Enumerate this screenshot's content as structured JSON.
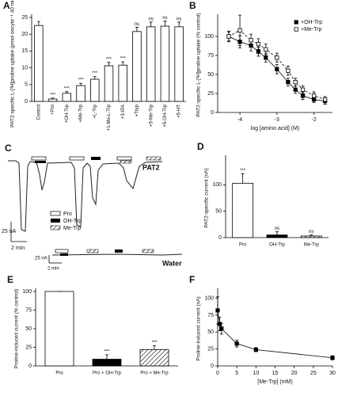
{
  "chart_data": [
    {
      "panel": "A",
      "type": "bar",
      "ylabel": "PAT2-specific L-[³H]proline uptake (pmol oocyte⁻¹ 40 min⁻¹)",
      "categories": [
        "Control",
        "+Pro",
        "+OH-Trp",
        "+Me-Trp",
        "+L-Trp",
        "+1-Me-L-Trp",
        "+3-IPA",
        "+Tryp",
        "+5-Me-Trp",
        "+5-OH-Trp",
        "+5-HT"
      ],
      "values": [
        22.6,
        0.7,
        2.4,
        4.7,
        6.6,
        10.6,
        10.8,
        20.8,
        22.2,
        22.4,
        22.2
      ],
      "errors": [
        1.2,
        0.3,
        0.5,
        0.7,
        0.8,
        1.0,
        1.0,
        1.3,
        1.4,
        1.5,
        1.4
      ],
      "annotations": [
        null,
        "***",
        "***",
        "***",
        "***",
        "***",
        "***",
        "ns",
        "ns",
        "ns",
        "ns"
      ],
      "fills": [
        "white",
        "white",
        "white",
        "white",
        "white",
        "white",
        "white",
        "white",
        "white",
        "white",
        "white"
      ],
      "ylim": [
        0,
        25
      ],
      "yticks": [
        0,
        5,
        10,
        15,
        20,
        25
      ]
    },
    {
      "panel": "B",
      "type": "scatter",
      "xlabel": "log [amino acid] (M)",
      "ylabel": "PAT2-specific L-[³H]proline uptake (% control)",
      "x": [
        -4.3,
        -4,
        -3.7,
        -3.5,
        -3.3,
        -3,
        -2.7,
        -2.5,
        -2.3,
        -2,
        -1.7
      ],
      "series": [
        {
          "name": "+OH-Trp",
          "marker": "filled",
          "values": [
            100,
            93,
            88,
            80,
            72,
            57,
            40,
            30,
            22,
            17,
            15
          ],
          "errors": [
            6,
            8,
            7,
            6,
            6,
            6,
            5,
            5,
            5,
            4,
            4
          ]
        },
        {
          "name": "+Me-Trp",
          "marker": "open",
          "values": [
            100,
            108,
            95,
            90,
            83,
            72,
            55,
            40,
            30,
            22,
            17
          ],
          "errors": [
            7,
            20,
            8,
            7,
            7,
            6,
            6,
            5,
            5,
            5,
            4
          ]
        }
      ],
      "legend": "upper right",
      "xlim": [
        -4.6,
        -1.5
      ],
      "xticks": [
        -4,
        -3,
        -2
      ],
      "ylim": [
        0,
        125
      ],
      "yticks": [
        0,
        25,
        50,
        75,
        100
      ]
    },
    {
      "panel": "D",
      "type": "bar",
      "ylabel": "PAT2-specific current (nA)",
      "categories": [
        "Pro",
        "OH-Trp",
        "Me-Trp"
      ],
      "values": [
        103,
        5,
        3
      ],
      "errors": [
        18,
        6,
        2
      ],
      "annotations": [
        "***",
        "ns",
        "ns"
      ],
      "fills": [
        "white",
        "black",
        "hatched"
      ],
      "ylim": [
        0,
        150
      ],
      "yticks": [
        0,
        50,
        100
      ]
    },
    {
      "panel": "E",
      "type": "bar",
      "ylabel": "Proline-induced current (% control)",
      "categories": [
        "Pro",
        "Pro + OH-Trp",
        "Pro + Me-Trp"
      ],
      "values": [
        100,
        9,
        22
      ],
      "errors": [
        0,
        6,
        5
      ],
      "annotations": [
        null,
        "***",
        "***"
      ],
      "fills": [
        "white",
        "black",
        "hatched"
      ],
      "ylim": [
        0,
        100
      ],
      "yticks": [
        0,
        25,
        50,
        75,
        100
      ]
    },
    {
      "panel": "F",
      "type": "scatter",
      "xlabel": "[Me-Trp] (mM)",
      "ylabel": "Proline-induced current (nA)",
      "x": [
        0,
        0.5,
        1,
        5,
        10,
        30
      ],
      "series": [
        {
          "name": "Me-Trp",
          "marker": "filled",
          "values": [
            82,
            62,
            55,
            33,
            24,
            12
          ],
          "errors": [
            20,
            10,
            8,
            5,
            3,
            3
          ]
        }
      ],
      "xlim": [
        0,
        30
      ],
      "xticks": [
        0,
        5,
        10,
        15,
        20,
        25,
        30
      ],
      "ylim": [
        0,
        110
      ],
      "yticks": [
        0,
        25,
        50,
        75,
        100
      ]
    }
  ],
  "panel_c": {
    "panel": "C",
    "trace_label": "PAT2",
    "scale_current": "25 nA",
    "scale_time": "2 min",
    "legend": [
      "Pro",
      "OH-Trp",
      "Me-Trp"
    ],
    "inset_scale_current": "25 nA",
    "inset_scale_time": "2 min",
    "inset_label": "Water"
  }
}
